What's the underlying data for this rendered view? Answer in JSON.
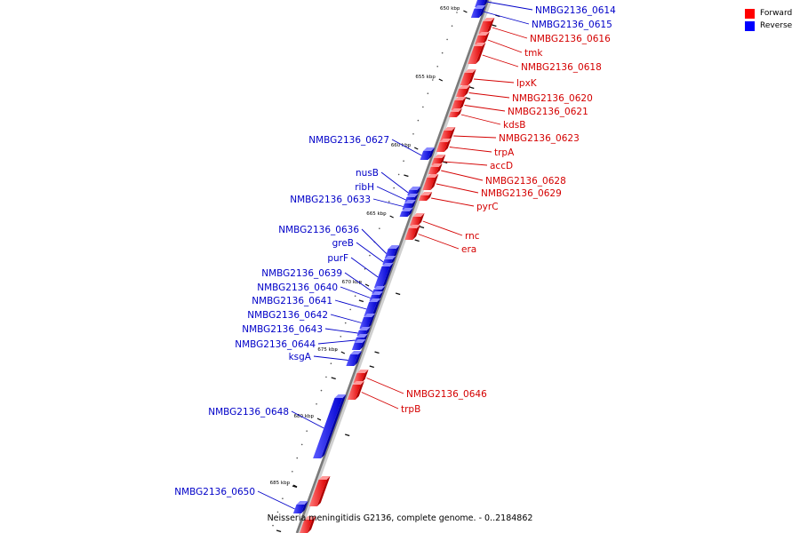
{
  "legend": {
    "forward_label": "Forward",
    "reverse_label": "Reverse",
    "forward_color": "#ff0000",
    "reverse_color": "#0000ff"
  },
  "caption": "Neisseria meningitidis G2136, complete genome. - 0..2184862",
  "ticks": [
    "650 kbp",
    "655 kbp",
    "660 kbp",
    "665 kbp",
    "670 kbp",
    "675 kbp",
    "680 kbp",
    "685 kbp"
  ],
  "forward_genes": [
    "NMBG2136_0616",
    "tmk",
    "NMBG2136_0618",
    "lpxK",
    "NMBG2136_0620",
    "NMBG2136_0621",
    "kdsB",
    "NMBG2136_0623",
    "trpA",
    "accD",
    "NMBG2136_0628",
    "NMBG2136_0629",
    "pyrC",
    "rnc",
    "era",
    "NMBG2136_0646",
    "trpB"
  ],
  "reverse_genes": [
    "NMBG2136_0614",
    "NMBG2136_0615",
    "NMBG2136_0627",
    "nusB",
    "ribH",
    "NMBG2136_0633",
    "NMBG2136_0636",
    "greB",
    "purF",
    "NMBG2136_0639",
    "NMBG2136_0640",
    "NMBG2136_0641",
    "NMBG2136_0642",
    "NMBG2136_0643",
    "NMBG2136_0644",
    "ksgA",
    "NMBG2136_0648",
    "NMBG2136_0650"
  ]
}
